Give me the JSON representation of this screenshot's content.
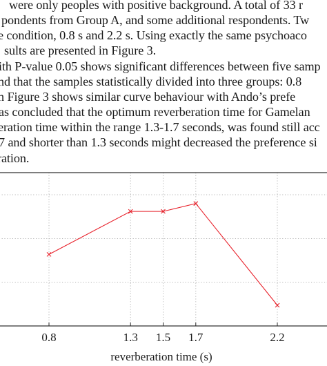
{
  "paragraph": {
    "lines": [
      "were only peoples with positive background. A total of 33 r",
      "pondents from Group A, and some additional respondents. Tw",
      "e condition, 0.8  s and 2.2  s. Using exactly the same psychoaco",
      "sults are presented in Figure 3.",
      "ith P-value 0.05 shows significant differences between five samp",
      "nd that the samples statistically divided into three groups: 0.8",
      "n Figure 3 shows similar curve behaviour with Ando’s prefe",
      "as concluded that the optimum reverberation time for Gamelan",
      "eration time within the range 1.3-1.7 seconds, was found still acc",
      "7 and shorter than 1.3 seconds might decreased the preference si",
      "ration."
    ]
  },
  "chart_data": {
    "type": "line",
    "xlabel": "reverberation time (s)",
    "ylabel": "",
    "x_ticks": [
      "0.8",
      "1.3",
      "1.5",
      "1.7",
      "2.2"
    ],
    "series": [
      {
        "color": "#e8202a",
        "marker": "x",
        "x": [
          0.8,
          1.3,
          1.5,
          1.7,
          2.2
        ],
        "y": [
          0.32,
          0.81,
          0.81,
          0.9,
          -0.26
        ]
      }
    ],
    "xlim": [
      0.6,
      2.4
    ],
    "ylim": [
      -0.5,
      1.5
    ],
    "y_gridlines": [
      0,
      0.5,
      1.0
    ],
    "grid": "dotted"
  }
}
